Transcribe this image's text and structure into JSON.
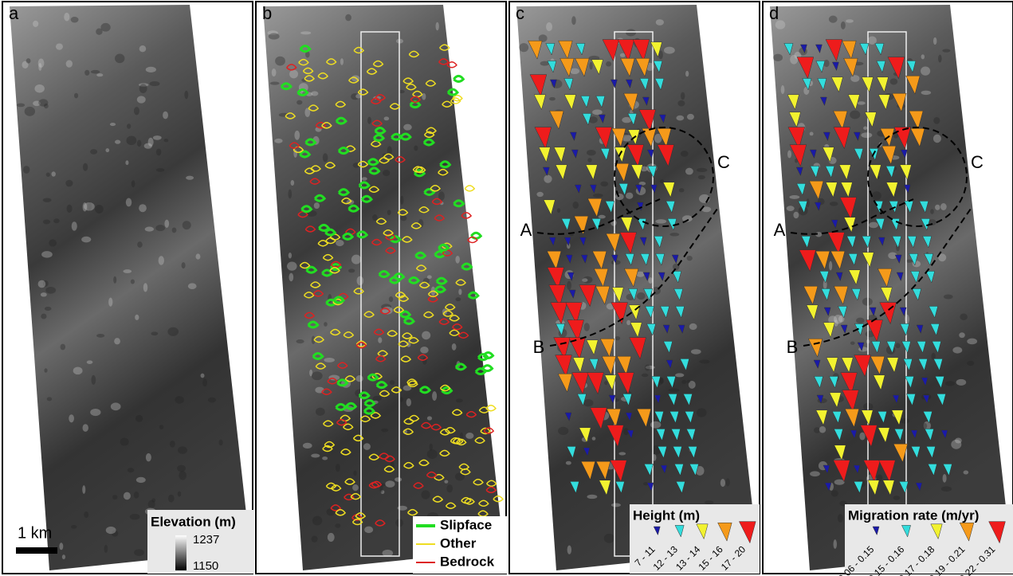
{
  "panels": [
    {
      "label": "a",
      "scale_bar": "1 km",
      "legend": {
        "title": "Elevation (m)",
        "max": "1237",
        "min": "1150"
      }
    },
    {
      "label": "b",
      "legend": {
        "items": [
          {
            "label": "Slipface",
            "color": "#22dd22"
          },
          {
            "label": "Other",
            "color": "#eedd22"
          },
          {
            "label": "Bedrock",
            "color": "#dd2222"
          }
        ]
      }
    },
    {
      "label": "c",
      "annotations": [
        "A",
        "B",
        "C"
      ],
      "legend": {
        "title": "Height (m)",
        "items": [
          {
            "label": "7 - 11",
            "color": "#1a1aa8"
          },
          {
            "label": "12 - 13",
            "color": "#33dddd"
          },
          {
            "label": "13 - 14",
            "color": "#f2f230"
          },
          {
            "label": "15 - 16",
            "color": "#f59a1a"
          },
          {
            "label": "17 - 20",
            "color": "#ee1c1c"
          }
        ]
      }
    },
    {
      "label": "d",
      "annotations": [
        "A",
        "B",
        "C"
      ],
      "legend": {
        "title": "Migration rate (m/yr)",
        "items": [
          {
            "label": "0.06 - 0.15",
            "color": "#1a1aa8"
          },
          {
            "label": "0.15 - 0.16",
            "color": "#33dddd"
          },
          {
            "label": "0.17 - 0.18",
            "color": "#f2f230"
          },
          {
            "label": "0.19 - 0.21",
            "color": "#f59a1a"
          },
          {
            "label": "0.22 - 0.31",
            "color": "#ee1c1c"
          }
        ]
      }
    }
  ]
}
